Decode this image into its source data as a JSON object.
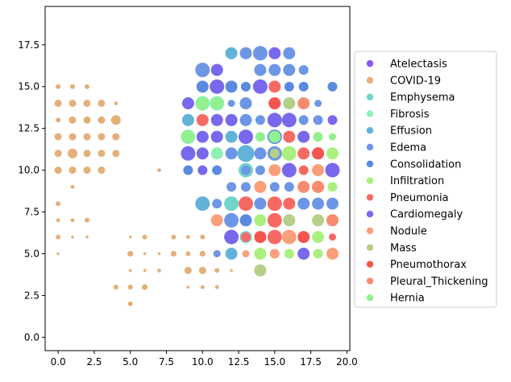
{
  "chart_data": {
    "type": "scatter",
    "title": "",
    "xlabel": "",
    "ylabel": "",
    "xlim": [
      -0.9,
      20.2
    ],
    "ylim": [
      -0.8,
      19.8
    ],
    "x_ticks": [
      0.0,
      2.5,
      5.0,
      7.5,
      10.0,
      12.5,
      15.0,
      17.5,
      20.0
    ],
    "x_tick_labels": [
      "0.0",
      "2.5",
      "5.0",
      "7.5",
      "10.0",
      "12.5",
      "15.0",
      "17.5",
      "20.0"
    ],
    "y_ticks": [
      0.0,
      2.5,
      5.0,
      7.5,
      10.0,
      12.5,
      15.0,
      17.5
    ],
    "y_tick_labels": [
      "0.0",
      "2.5",
      "5.0",
      "7.5",
      "10.0",
      "12.5",
      "15.0",
      "17.5"
    ],
    "grid": false,
    "legend_position": "right, outside plot",
    "series": [
      {
        "name": "Atelectasis",
        "color": "#8b55f2",
        "points": []
      },
      {
        "name": "COVID-19",
        "color": "#e3b07a",
        "points": [
          [
            0,
            15,
            1
          ],
          [
            1,
            15,
            1
          ],
          [
            2,
            15,
            1
          ],
          [
            0,
            14,
            1.5
          ],
          [
            1,
            14,
            1.5
          ],
          [
            2,
            14,
            1.5
          ],
          [
            3,
            14,
            1.5
          ],
          [
            4,
            14,
            0.8
          ],
          [
            0,
            13,
            1
          ],
          [
            1,
            13,
            1.5
          ],
          [
            2,
            13,
            1.5
          ],
          [
            3,
            13,
            1.5
          ],
          [
            4,
            13,
            2
          ],
          [
            0,
            12,
            1.5
          ],
          [
            1,
            12,
            1.5
          ],
          [
            2,
            12,
            1.5
          ],
          [
            3,
            12,
            1.5
          ],
          [
            4,
            12,
            1.5
          ],
          [
            0,
            11,
            1.5
          ],
          [
            1,
            11,
            2
          ],
          [
            2,
            11,
            1.5
          ],
          [
            3,
            11,
            1.5
          ],
          [
            4,
            11,
            1.5
          ],
          [
            0,
            10,
            1.5
          ],
          [
            1,
            10,
            1.5
          ],
          [
            2,
            10,
            1.5
          ],
          [
            3,
            10,
            1.5
          ],
          [
            7,
            10,
            0.8
          ],
          [
            1,
            9,
            0.8
          ],
          [
            0,
            8,
            1
          ],
          [
            0,
            7,
            0.8
          ],
          [
            1,
            7,
            0.8
          ],
          [
            2,
            7,
            1
          ],
          [
            0,
            6,
            1
          ],
          [
            1,
            6,
            0.6
          ],
          [
            2,
            6,
            0.6
          ],
          [
            5,
            6,
            0.6
          ],
          [
            6,
            6,
            1
          ],
          [
            8,
            6,
            1
          ],
          [
            9,
            6,
            0.8
          ],
          [
            10,
            6,
            1
          ],
          [
            0,
            5,
            0.6
          ],
          [
            5,
            5,
            1.2
          ],
          [
            6,
            5,
            0.6
          ],
          [
            7,
            5,
            0.6
          ],
          [
            8,
            5,
            1.2
          ],
          [
            9,
            5,
            1
          ],
          [
            10,
            5,
            1.2
          ],
          [
            11,
            5,
            1.5
          ],
          [
            5,
            4,
            0.6
          ],
          [
            6,
            4,
            0.6
          ],
          [
            7,
            4,
            0.8
          ],
          [
            9,
            4,
            1.5
          ],
          [
            10,
            4,
            1.5
          ],
          [
            11,
            4,
            1
          ],
          [
            12,
            4,
            0.6
          ],
          [
            4,
            3,
            1
          ],
          [
            5,
            3,
            1
          ],
          [
            6,
            3,
            1.2
          ],
          [
            9,
            3,
            0.6
          ],
          [
            10,
            3,
            0.8
          ],
          [
            11,
            3,
            0.8
          ],
          [
            5,
            2,
            1
          ]
        ]
      },
      {
        "name": "Emphysema",
        "color": "#6fd6c9",
        "points": [
          [
            13,
            10,
            3
          ],
          [
            12,
            8,
            3
          ],
          [
            13,
            6,
            2.5
          ]
        ]
      },
      {
        "name": "Fibrosis",
        "color": "#8ff0b3",
        "points": [
          [
            10,
            14,
            3
          ],
          [
            11,
            14,
            3
          ],
          [
            9,
            12,
            3
          ],
          [
            11,
            11,
            2.5
          ]
        ]
      },
      {
        "name": "Effusion",
        "color": "#63b3d8",
        "points": [
          [
            12,
            17,
            2.5
          ],
          [
            9,
            13,
            2.5
          ],
          [
            12,
            12,
            2.5
          ],
          [
            13,
            11,
            3.5
          ],
          [
            10,
            8,
            3
          ],
          [
            12,
            5,
            2.5
          ]
        ]
      },
      {
        "name": "Edema",
        "color": "#6d96e6",
        "points": [
          [
            13,
            17,
            2.5
          ],
          [
            14,
            17,
            3
          ],
          [
            16,
            17,
            2.5
          ],
          [
            10,
            16,
            3
          ],
          [
            14,
            16,
            2.5
          ],
          [
            15,
            16,
            2.5
          ],
          [
            16,
            16,
            2.5
          ],
          [
            17,
            16,
            2
          ],
          [
            12,
            14,
            1.5
          ],
          [
            13,
            14,
            2.5
          ],
          [
            16,
            14,
            2
          ],
          [
            17,
            14,
            2
          ],
          [
            18,
            14,
            1.5
          ],
          [
            13,
            13,
            2.5
          ],
          [
            14,
            13,
            2
          ],
          [
            16,
            13,
            2.5
          ],
          [
            17,
            13,
            2
          ],
          [
            18,
            13,
            2
          ],
          [
            12,
            11,
            2.5
          ],
          [
            14,
            11,
            2.5
          ],
          [
            15,
            11,
            3
          ],
          [
            13,
            10,
            2
          ],
          [
            14,
            10,
            2
          ],
          [
            12,
            9,
            2
          ],
          [
            13,
            9,
            2
          ],
          [
            15,
            9,
            2
          ],
          [
            16,
            9,
            2
          ],
          [
            17,
            9,
            2
          ],
          [
            11,
            8,
            2
          ],
          [
            13,
            8,
            2.5
          ],
          [
            14,
            8,
            2.5
          ],
          [
            17,
            8,
            2.5
          ],
          [
            18,
            8,
            2.5
          ],
          [
            19,
            8,
            2.5
          ],
          [
            11,
            5,
            1.5
          ],
          [
            12,
            7,
            3
          ]
        ]
      },
      {
        "name": "Consolidation",
        "color": "#5a8ae0",
        "points": [
          [
            10,
            15,
            2.5
          ],
          [
            12,
            15,
            2.5
          ],
          [
            13,
            15,
            2
          ],
          [
            16,
            15,
            2
          ],
          [
            17,
            15,
            2
          ],
          [
            19,
            15,
            2
          ],
          [
            9,
            10,
            2
          ],
          [
            11,
            10,
            2
          ],
          [
            16,
            10,
            2
          ],
          [
            13,
            7,
            2.5
          ],
          [
            15,
            12,
            3
          ]
        ]
      },
      {
        "name": "Infiltration",
        "color": "#aaf07f",
        "points": [
          [
            16,
            11,
            3
          ],
          [
            19,
            11,
            2.5
          ],
          [
            19,
            9,
            2
          ],
          [
            14,
            7,
            2.5
          ],
          [
            16,
            7,
            2.5
          ],
          [
            18,
            6,
            2.5
          ],
          [
            14,
            5,
            2.5
          ],
          [
            16,
            5,
            2
          ],
          [
            18,
            5,
            2
          ]
        ]
      },
      {
        "name": "Pneumonia",
        "color": "#f76a64",
        "points": [
          [
            10,
            13,
            2.5
          ],
          [
            15,
            15,
            2.5
          ],
          [
            15,
            14,
            2.5
          ],
          [
            16,
            12,
            2.5
          ],
          [
            17,
            11,
            2.5
          ],
          [
            18,
            11,
            2.5
          ],
          [
            17,
            10,
            2
          ],
          [
            13,
            8,
            3
          ],
          [
            15,
            8,
            3
          ],
          [
            16,
            8,
            2.5
          ],
          [
            15,
            7,
            3
          ],
          [
            13,
            6,
            2
          ],
          [
            17,
            6,
            2
          ],
          [
            19,
            6,
            1.5
          ],
          [
            15,
            6,
            3
          ]
        ]
      },
      {
        "name": "Cardiomegaly",
        "color": "#7868ec",
        "points": [
          [
            11,
            16,
            2.5
          ],
          [
            15,
            17,
            2.5
          ],
          [
            11,
            15,
            3
          ],
          [
            14,
            15,
            3
          ],
          [
            9,
            14,
            2.5
          ],
          [
            11,
            13,
            2.5
          ],
          [
            12,
            13,
            2.5
          ],
          [
            15,
            13,
            3
          ],
          [
            16,
            13,
            3
          ],
          [
            19,
            13,
            2
          ],
          [
            10,
            12,
            2.5
          ],
          [
            11,
            12,
            2.5
          ],
          [
            13,
            12,
            3
          ],
          [
            17,
            12,
            2.5
          ],
          [
            9,
            11,
            3
          ],
          [
            10,
            11,
            2.5
          ],
          [
            16,
            10,
            3
          ],
          [
            19,
            10,
            3
          ],
          [
            10,
            10,
            2
          ],
          [
            12,
            6,
            3
          ],
          [
            17,
            5,
            2.5
          ],
          [
            9,
            11,
            2
          ]
        ]
      },
      {
        "name": "Nodule",
        "color": "#fb9f7b",
        "points": [
          [
            11,
            7,
            2.5
          ],
          [
            15,
            10,
            2.5
          ],
          [
            18,
            10,
            2.5
          ],
          [
            14,
            9,
            2.5
          ],
          [
            18,
            9,
            2.5
          ],
          [
            15,
            5,
            2
          ],
          [
            19,
            5,
            2.5
          ],
          [
            16,
            6,
            3
          ],
          [
            13,
            5,
            1.5
          ]
        ]
      },
      {
        "name": "Mass",
        "color": "#b6cf8a",
        "points": [
          [
            16,
            14,
            2.5
          ],
          [
            15,
            11,
            2
          ],
          [
            16,
            7,
            2.5
          ],
          [
            14,
            4,
            2.5
          ],
          [
            18,
            7,
            2.5
          ]
        ]
      },
      {
        "name": "Pneumothorax",
        "color": "#f4564f",
        "points": [
          [
            15,
            14,
            2.5
          ],
          [
            18,
            11,
            2.5
          ],
          [
            14,
            6,
            2.5
          ],
          [
            17,
            6,
            2.5
          ]
        ]
      },
      {
        "name": "Pleural_Thickening",
        "color": "#f88a6f",
        "points": [
          [
            17,
            14,
            2.5
          ],
          [
            17,
            9,
            2.5
          ],
          [
            18,
            9,
            2.5
          ],
          [
            19,
            7,
            2.5
          ]
        ]
      },
      {
        "name": "Hernia",
        "color": "#92f08f",
        "points": [
          [
            10,
            14,
            2.5
          ],
          [
            9,
            12,
            2.5
          ],
          [
            11,
            14,
            2.5
          ],
          [
            14,
            12,
            2
          ],
          [
            18,
            12,
            2
          ],
          [
            15,
            12,
            2.5
          ],
          [
            19,
            12,
            1.5
          ]
        ]
      }
    ]
  }
}
